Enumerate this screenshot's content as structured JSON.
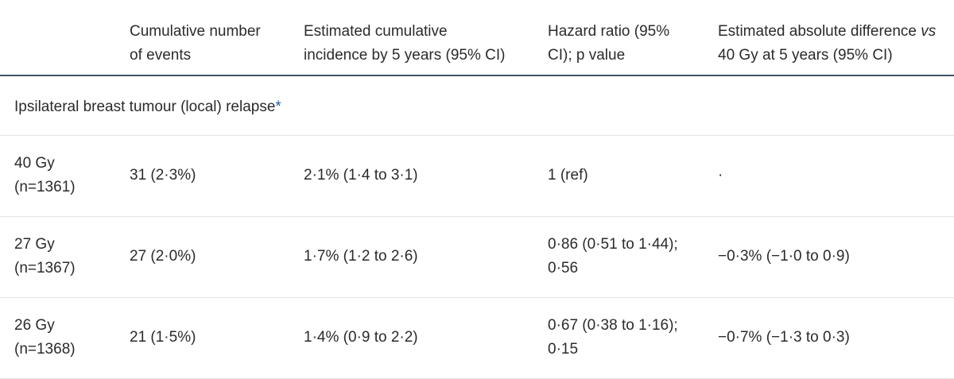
{
  "header": {
    "col_events": [
      "Cumulative number",
      "of events"
    ],
    "col_incidence": [
      "Estimated cumulative",
      "incidence by 5 years (95% CI)"
    ],
    "col_hazard": [
      "Hazard ratio (95%",
      "CI); p value"
    ],
    "col_diff_line1_prefix": "Estimated absolute difference ",
    "col_diff_line1_italic": "vs",
    "col_diff_line2": "40 Gy at 5 years (95% CI)"
  },
  "section": {
    "label": "Ipsilateral breast tumour (local) relapse",
    "marker": "*"
  },
  "rows": [
    {
      "group": [
        "40 Gy",
        "(n=1361)"
      ],
      "events": "31 (2·3%)",
      "incidence": "2·1% (1·4 to 3·1)",
      "hazard": [
        "1 (ref)"
      ],
      "diff": "·"
    },
    {
      "group": [
        "27 Gy",
        "(n=1367)"
      ],
      "events": "27 (2·0%)",
      "incidence": "1·7% (1·2 to 2·6)",
      "hazard": [
        "0·86 (0·51 to 1·44);",
        "0·56"
      ],
      "diff": "−0·3% (−1·0 to 0·9)"
    },
    {
      "group": [
        "26 Gy",
        "(n=1368)"
      ],
      "events": "21 (1·5%)",
      "incidence": "1·4% (0·9 to 2·2)",
      "hazard": [
        "0·67 (0·38 to 1·16);",
        "0·15"
      ],
      "diff": "−0·7% (−1·3 to 0·3)"
    }
  ]
}
